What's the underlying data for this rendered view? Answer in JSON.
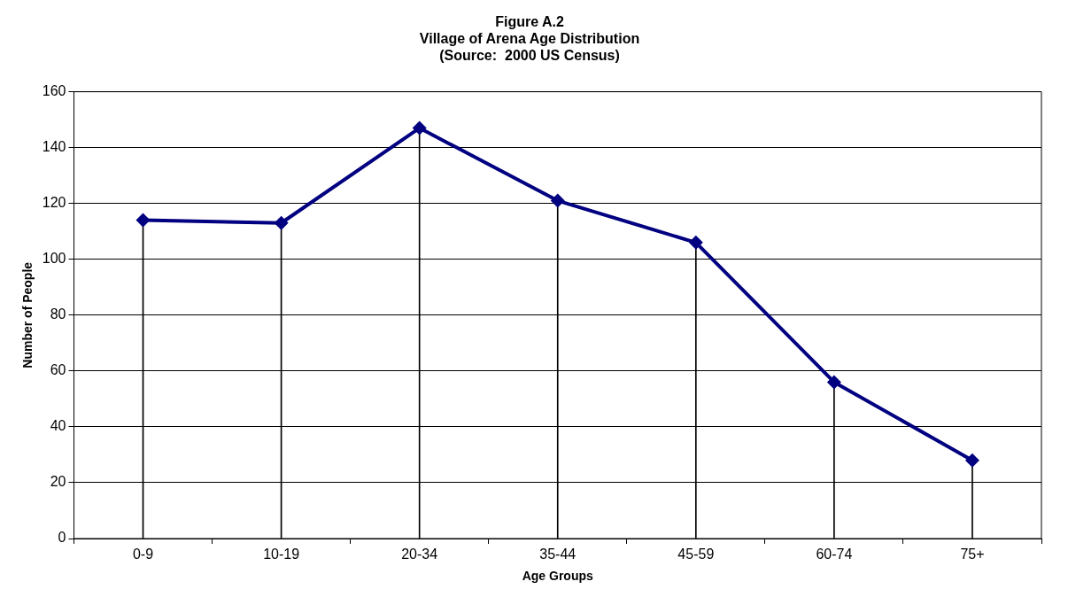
{
  "chart_data": {
    "type": "line",
    "title": "Figure A.2\nVillage of Arena Age Distribution\n(Source:  2000 US Census)",
    "xlabel": "Age Groups",
    "ylabel": "Number of People",
    "categories": [
      "0-9",
      "10-19",
      "20-34",
      "35-44",
      "45-59",
      "60-74",
      "75+"
    ],
    "series": [
      {
        "marker": "none",
        "color": "#000080",
        "values": [
          114,
          113,
          147,
          121,
          106,
          56,
          28
        ]
      },
      {
        "type": "lollipop",
        "color": "#000080",
        "values": [
          114,
          113,
          147,
          121,
          106,
          56,
          28
        ]
      }
    ],
    "ylim": [
      0,
      160
    ],
    "yticks": [
      0,
      20,
      40,
      60,
      80,
      100,
      120,
      140,
      160
    ],
    "grid": "y",
    "legend": false,
    "marker": "diamond",
    "line_style": "solid"
  }
}
